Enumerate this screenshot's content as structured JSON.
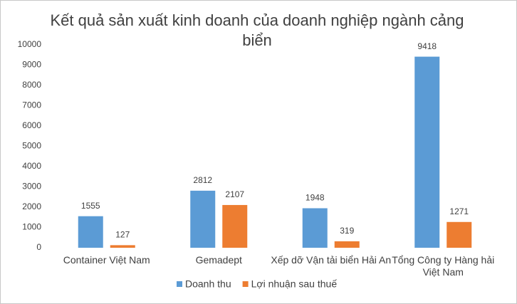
{
  "chart_data": {
    "type": "bar",
    "title": "Kết quả sản xuất kinh doanh của doanh nghiệp ngành cảng biển",
    "categories": [
      "Container Việt Nam",
      "Gemadept",
      "Xếp dỡ Vận tải biển Hải An",
      "Tổng Công ty Hàng hải Việt Nam"
    ],
    "series": [
      {
        "name": "Doanh thu",
        "color": "#5b9bd5",
        "values": [
          1555,
          2812,
          1948,
          9418
        ]
      },
      {
        "name": "Lợi nhuận sau thuế",
        "color": "#ed7d31",
        "values": [
          127,
          2107,
          319,
          1271
        ]
      }
    ],
    "ylim": [
      0,
      10000
    ],
    "yticks": [
      0,
      1000,
      2000,
      3000,
      4000,
      5000,
      6000,
      7000,
      8000,
      9000,
      10000
    ],
    "grid": false,
    "legend": "bottom"
  }
}
